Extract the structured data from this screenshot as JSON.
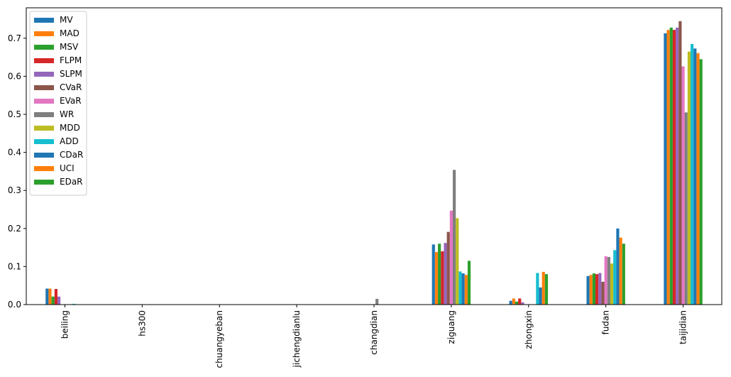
{
  "chart_data": {
    "type": "bar",
    "title": "",
    "xlabel": "",
    "ylabel": "",
    "ylim": [
      0,
      0.78
    ],
    "yticks": [
      "0.0",
      "0.1",
      "0.2",
      "0.3",
      "0.4",
      "0.5",
      "0.6",
      "0.7"
    ],
    "grid": false,
    "legend_position": "top-left",
    "categories": [
      "beiling",
      "hs300",
      "chuangyeban",
      "jichengdianlu",
      "changdian",
      "ziguang",
      "zhongxin",
      "fudan",
      "taijidian"
    ],
    "series": [
      {
        "name": "MV",
        "color": "#1f77b4",
        "values": [
          0.042,
          0.0,
          0.0,
          0.0,
          0.0,
          0.158,
          0.01,
          0.075,
          0.713
        ]
      },
      {
        "name": "MAD",
        "color": "#ff7f0e",
        "values": [
          0.042,
          0.0,
          0.0,
          0.0,
          0.0,
          0.138,
          0.016,
          0.078,
          0.722
        ]
      },
      {
        "name": "MSV",
        "color": "#2ca02c",
        "values": [
          0.021,
          0.0,
          0.0,
          0.0,
          0.0,
          0.16,
          0.008,
          0.082,
          0.728
        ]
      },
      {
        "name": "FLPM",
        "color": "#d62728",
        "values": [
          0.041,
          0.0,
          0.0,
          0.0,
          0.0,
          0.14,
          0.016,
          0.08,
          0.722
        ]
      },
      {
        "name": "SLPM",
        "color": "#9467bd",
        "values": [
          0.021,
          0.0,
          0.0,
          0.0,
          0.0,
          0.162,
          0.006,
          0.083,
          0.728
        ]
      },
      {
        "name": "CVaR",
        "color": "#8c564b",
        "values": [
          0.0,
          0.0,
          0.0,
          0.0,
          0.0,
          0.191,
          0.0,
          0.06,
          0.745
        ]
      },
      {
        "name": "EVaR",
        "color": "#e377c2",
        "values": [
          0.0,
          0.0,
          0.0,
          0.0,
          0.0,
          0.247,
          0.0,
          0.127,
          0.626
        ]
      },
      {
        "name": "WR",
        "color": "#7f7f7f",
        "values": [
          0.0,
          0.0,
          0.0,
          0.0,
          0.015,
          0.354,
          0.0,
          0.125,
          0.505
        ]
      },
      {
        "name": "MDD",
        "color": "#bcbd22",
        "values": [
          0.0,
          0.0,
          0.0,
          0.0,
          0.0,
          0.227,
          0.0,
          0.108,
          0.665
        ]
      },
      {
        "name": "ADD",
        "color": "#17becf",
        "values": [
          0.002,
          0.0,
          0.0,
          0.0,
          0.0,
          0.087,
          0.083,
          0.143,
          0.685
        ]
      },
      {
        "name": "CDaR",
        "color": "#1f77b4",
        "values": [
          0.0,
          0.0,
          0.0,
          0.0,
          0.0,
          0.082,
          0.045,
          0.2,
          0.673
        ]
      },
      {
        "name": "UCI",
        "color": "#ff7f0e",
        "values": [
          0.0,
          0.0,
          0.0,
          0.0,
          0.0,
          0.078,
          0.086,
          0.176,
          0.661
        ]
      },
      {
        "name": "EDaR",
        "color": "#2ca02c",
        "values": [
          0.0,
          0.0,
          0.0,
          0.0,
          0.0,
          0.115,
          0.08,
          0.16,
          0.645
        ]
      }
    ]
  }
}
